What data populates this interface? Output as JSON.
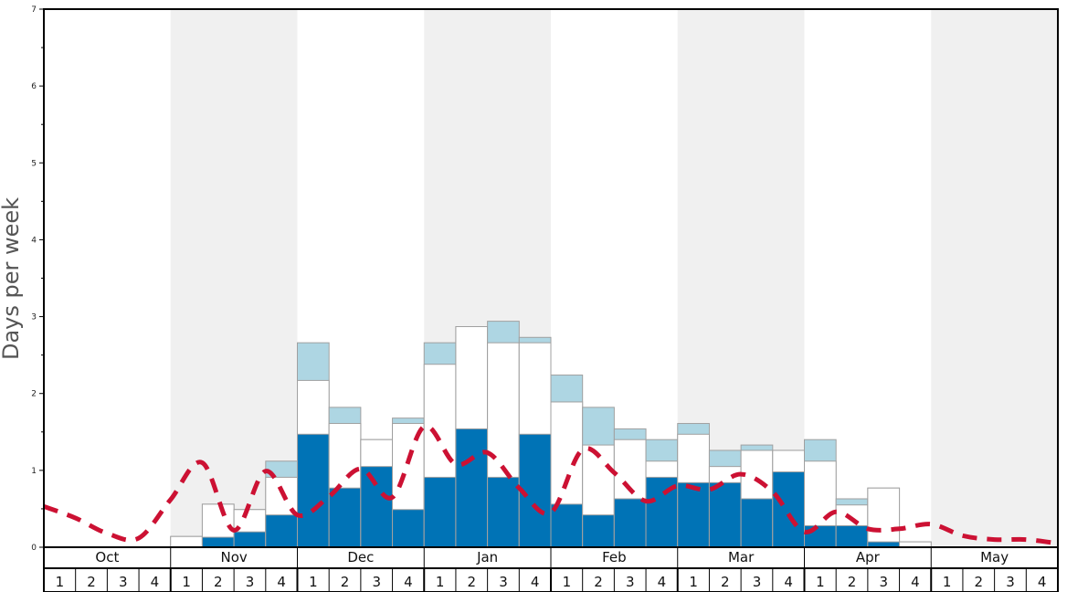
{
  "colors": {
    "band": "#f0f0f0",
    "dark_bar": "#0073b6",
    "white_bar": "#ffffff",
    "light_bar": "#aed6e3",
    "bar_stroke": "#a0a0a0",
    "line": "#cc1133",
    "frame": "#000000"
  },
  "chart_data": {
    "type": "bar",
    "ylabel": "Days per week",
    "ylim": [
      0,
      7
    ],
    "yticks": [
      "0",
      "1",
      "2",
      "3",
      "4",
      "5",
      "6",
      "7"
    ],
    "months": [
      "Oct",
      "Nov",
      "Dec",
      "Jan",
      "Feb",
      "Mar",
      "Apr",
      "May"
    ],
    "week_labels": [
      "1",
      "2",
      "3",
      "4"
    ],
    "shaded_months": [
      "Nov",
      "Jan",
      "Mar",
      "May"
    ],
    "stack_segments": [
      {
        "values": [
          0,
          0,
          0,
          0,
          0,
          0.13,
          0.2,
          0.42,
          1.47,
          0.77,
          1.05,
          0.49,
          0.91,
          1.54,
          0.91,
          1.47,
          0.56,
          0.42,
          0.63,
          0.91,
          0.84,
          0.84,
          0.63,
          0.98,
          0.28,
          0.28,
          0.07,
          0,
          0,
          0,
          0,
          0
        ]
      },
      {
        "values": [
          0,
          0,
          0,
          0,
          0.14,
          0.56,
          0.49,
          0.91,
          2.17,
          1.61,
          1.4,
          1.61,
          2.38,
          2.87,
          2.66,
          2.66,
          1.89,
          1.33,
          1.4,
          1.12,
          1.47,
          1.05,
          1.26,
          1.26,
          1.12,
          0.55,
          0.77,
          0.07,
          0,
          0,
          0,
          0
        ]
      },
      {
        "values": [
          0,
          0,
          0,
          0,
          0.14,
          0.56,
          0.49,
          1.12,
          2.66,
          1.82,
          1.4,
          1.68,
          2.66,
          2.87,
          2.94,
          2.73,
          2.24,
          1.82,
          1.54,
          1.4,
          1.61,
          1.26,
          1.33,
          1.26,
          1.4,
          0.63,
          0.77,
          0.07,
          0,
          0,
          0,
          0
        ]
      }
    ],
    "line_values": [
      0.53,
      0.38,
      0.18,
      0.12,
      0.62,
      1.1,
      0.22,
      0.99,
      0.42,
      0.66,
      1.02,
      0.65,
      1.57,
      1.08,
      1.23,
      0.77,
      0.45,
      1.27,
      0.97,
      0.6,
      0.8,
      0.75,
      0.95,
      0.72,
      0.2,
      0.46,
      0.24,
      0.24,
      0.3,
      0.15,
      0.1,
      0.1,
      0.05
    ]
  }
}
